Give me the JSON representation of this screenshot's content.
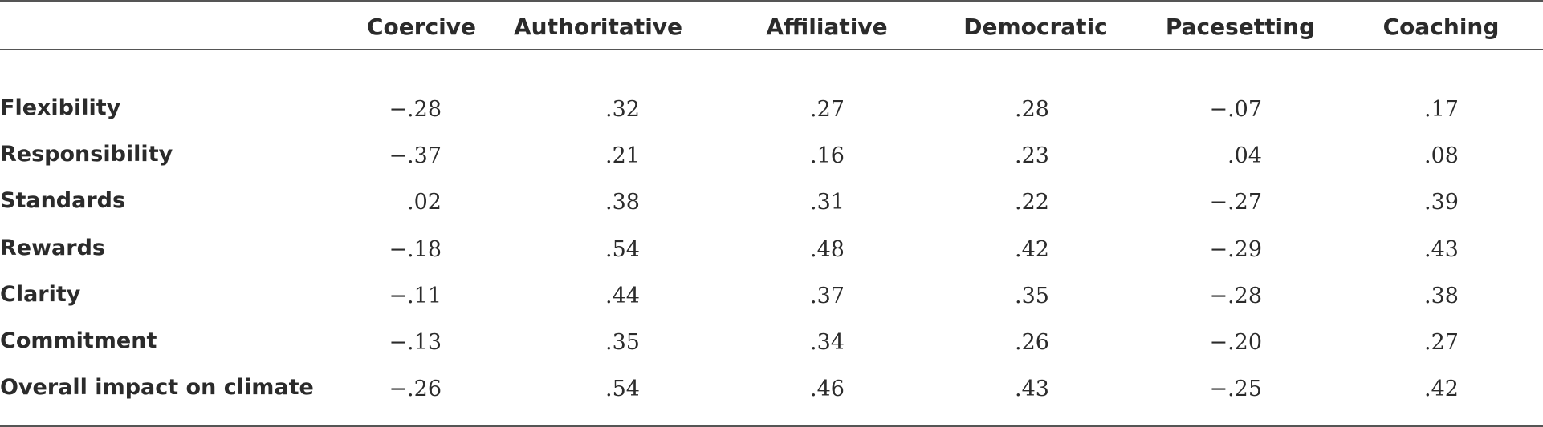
{
  "chart_data": {
    "type": "table",
    "columns": [
      "Coercive",
      "Authoritative",
      "Affiliative",
      "Democratic",
      "Pacesetting",
      "Coaching"
    ],
    "rows": [
      {
        "label": "Flexibility",
        "values": [
          "−.28",
          ".32",
          ".27",
          ".28",
          "−.07",
          ".17"
        ]
      },
      {
        "label": "Responsibility",
        "values": [
          "−.37",
          ".21",
          ".16",
          ".23",
          ".04",
          ".08"
        ]
      },
      {
        "label": "Standards",
        "values": [
          ".02",
          ".38",
          ".31",
          ".22",
          "−.27",
          ".39"
        ]
      },
      {
        "label": "Rewards",
        "values": [
          "−.18",
          ".54",
          ".48",
          ".42",
          "−.29",
          ".43"
        ]
      },
      {
        "label": "Clarity",
        "values": [
          "−.11",
          ".44",
          ".37",
          ".35",
          "−.28",
          ".38"
        ]
      },
      {
        "label": "Commitment",
        "values": [
          "−.13",
          ".35",
          ".34",
          ".26",
          "−.20",
          ".27"
        ]
      },
      {
        "label": "Overall impact on climate",
        "values": [
          "−.26",
          ".54",
          ".46",
          ".43",
          "−.25",
          ".42"
        ]
      }
    ]
  }
}
